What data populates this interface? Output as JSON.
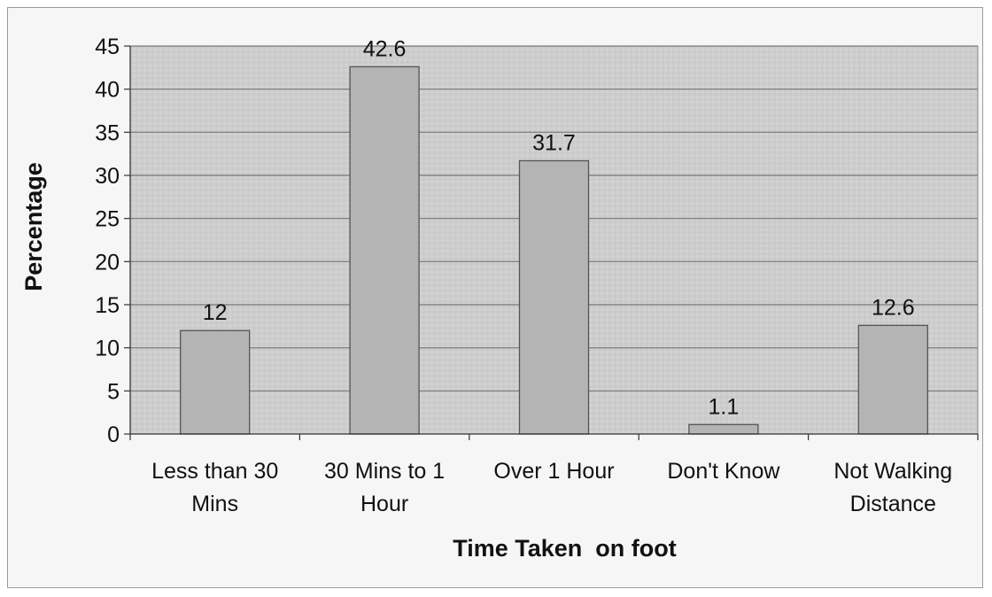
{
  "chart_data": {
    "type": "bar",
    "title": "",
    "xlabel": "Time Taken  on foot",
    "ylabel": "Percentage",
    "ylim": [
      0,
      45
    ],
    "yticks": [
      0,
      5,
      10,
      15,
      20,
      25,
      30,
      35,
      40,
      45
    ],
    "grid": true,
    "legend": "none",
    "categories": [
      [
        "Less than 30",
        "Mins"
      ],
      [
        "30 Mins to 1",
        "Hour"
      ],
      [
        "Over 1 Hour"
      ],
      [
        "Don't Know"
      ],
      [
        "Not Walking",
        "Distance"
      ]
    ],
    "values": [
      12,
      42.6,
      31.7,
      1.1,
      12.6
    ],
    "data_labels": [
      "12",
      "42.6",
      "31.7",
      "1.1",
      "12.6"
    ],
    "colors": {
      "plot_background": "#cfcfcf",
      "bar_fill": "#b4b4b4",
      "bar_stroke": "#555555",
      "gridline": "#777777"
    }
  }
}
